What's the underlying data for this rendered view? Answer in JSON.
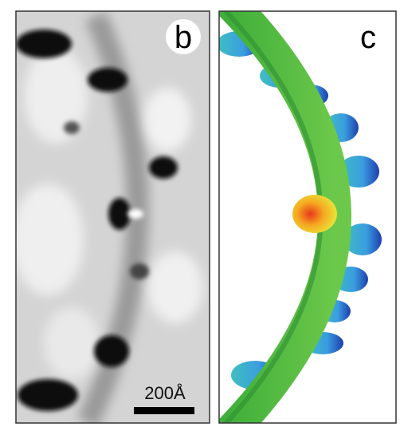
{
  "panels": [
    {
      "label": "b",
      "scale_bar": "200Å"
    },
    {
      "label": "c"
    }
  ]
}
